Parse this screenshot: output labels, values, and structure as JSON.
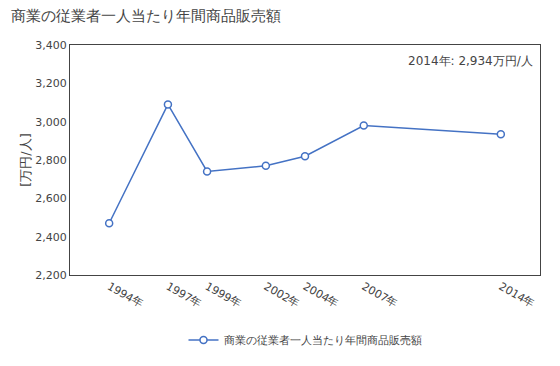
{
  "chart_data": {
    "type": "line",
    "title": "商業の従業者一人当たり年間商品販売額",
    "ylabel": "[万円/人]",
    "annotation": "2014年: 2,934万円/人",
    "x": [
      1994,
      1997,
      1999,
      2002,
      2004,
      2007,
      2014
    ],
    "series": [
      {
        "name": "商業の従業者一人当たり年間商品販売額",
        "color": "#4472C4",
        "marker": "circle",
        "values": [
          2470,
          3090,
          2740,
          2770,
          2820,
          2980,
          2934
        ]
      }
    ],
    "xlim": [
      1992,
      2016
    ],
    "xticks": [
      {
        "value": 1994,
        "label": "1994年"
      },
      {
        "value": 1997,
        "label": "1997年"
      },
      {
        "value": 1999,
        "label": "1999年"
      },
      {
        "value": 2002,
        "label": "2002年"
      },
      {
        "value": 2004,
        "label": "2004年"
      },
      {
        "value": 2007,
        "label": "2007年"
      },
      {
        "value": 2014,
        "label": "2014年"
      }
    ],
    "ylim": [
      2200,
      3400
    ],
    "yticks": [
      {
        "value": 2200,
        "label": "2,200"
      },
      {
        "value": 2400,
        "label": "2,400"
      },
      {
        "value": 2600,
        "label": "2,600"
      },
      {
        "value": 2800,
        "label": "2,800"
      },
      {
        "value": 3000,
        "label": "3,000"
      },
      {
        "value": 3200,
        "label": "3,200"
      },
      {
        "value": 3400,
        "label": "3,400"
      }
    ],
    "grid": false,
    "legend": "bottom"
  }
}
